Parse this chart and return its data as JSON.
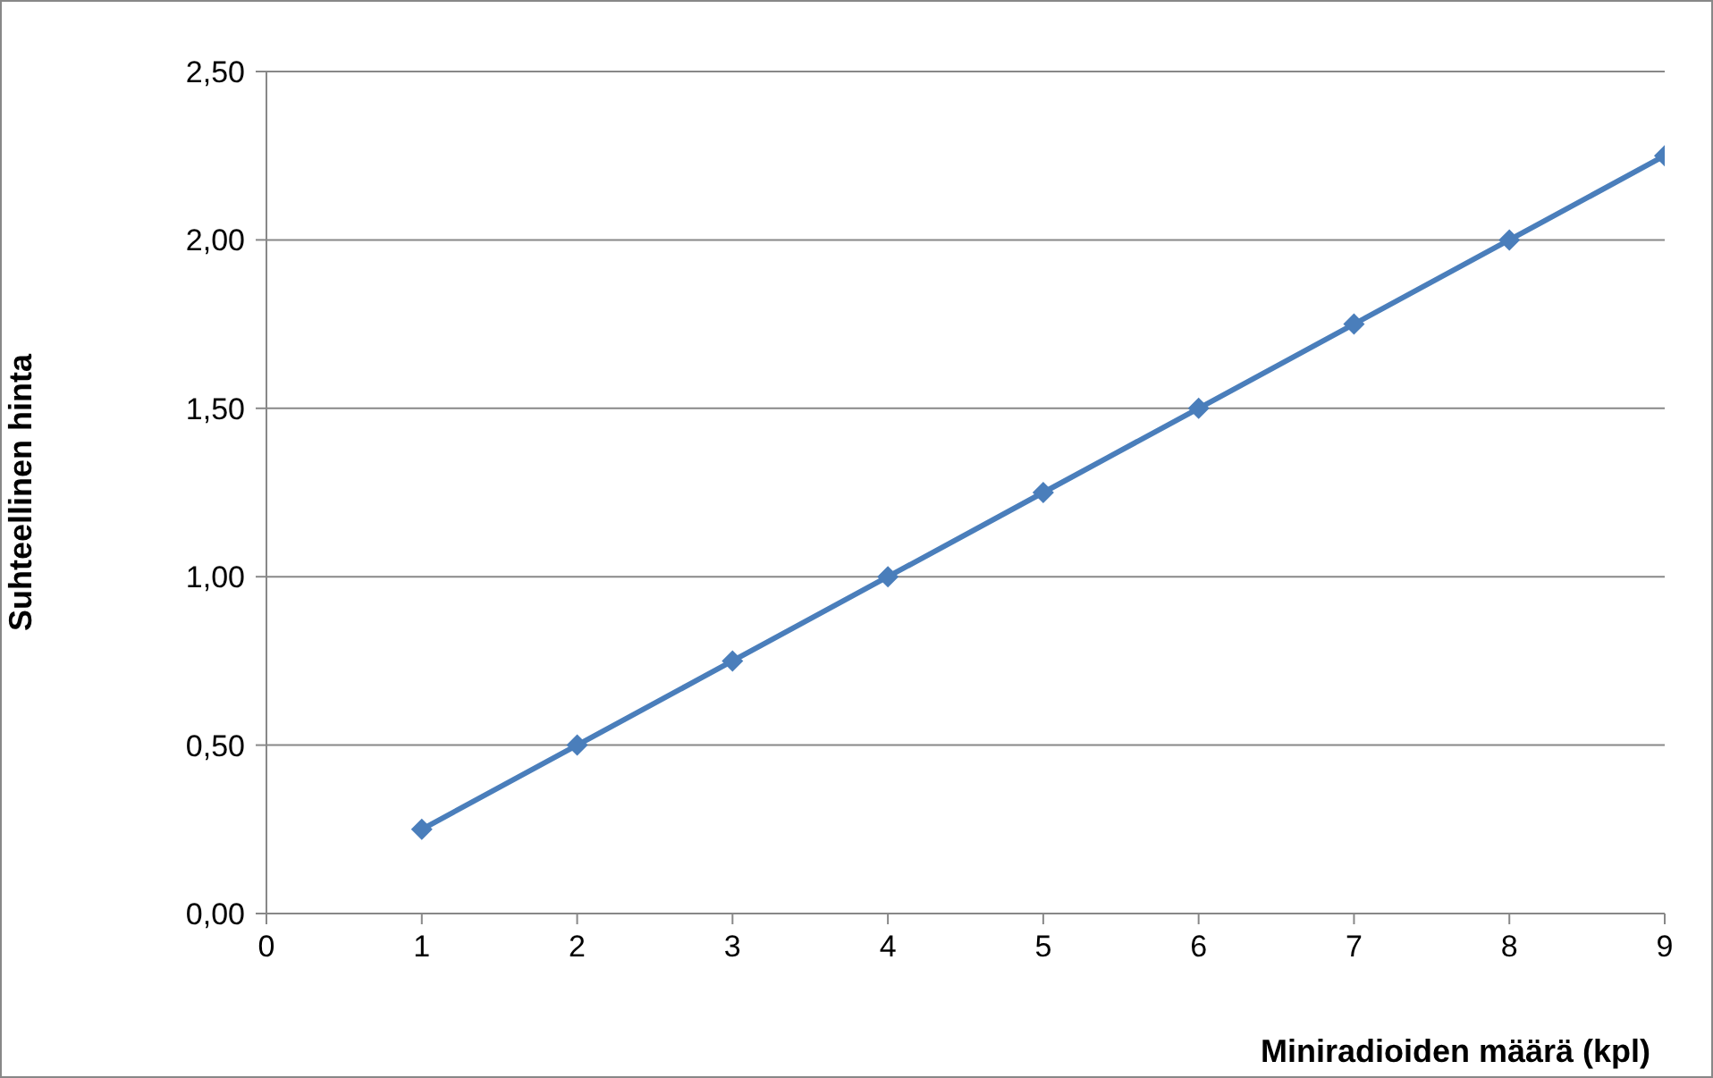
{
  "chart_data": {
    "type": "line",
    "xlabel": "Miniradioiden määrä (kpl)",
    "ylabel": "Suhteellinen hinta",
    "x": [
      1,
      2,
      3,
      4,
      5,
      6,
      7,
      8,
      9
    ],
    "series": [
      {
        "color": "#4a7ebb",
        "values": [
          0.25,
          0.5,
          0.75,
          1.0,
          1.25,
          1.5,
          1.75,
          2.0,
          2.25
        ]
      }
    ],
    "xlim": [
      0,
      9
    ],
    "xticks": [
      0,
      1,
      2,
      3,
      4,
      5,
      6,
      7,
      8,
      9
    ],
    "ylim": [
      0,
      2.5
    ],
    "yticks": [
      {
        "value": 0,
        "label": "0,00"
      },
      {
        "value": 0.5,
        "label": "0,50"
      },
      {
        "value": 1,
        "label": "1,00"
      },
      {
        "value": 1.5,
        "label": "1,50"
      },
      {
        "value": 2,
        "label": "2,00"
      },
      {
        "value": 2.5,
        "label": "2,50"
      }
    ],
    "grid": "y",
    "marker": "diamond",
    "line_style": "solid",
    "legend": false
  }
}
